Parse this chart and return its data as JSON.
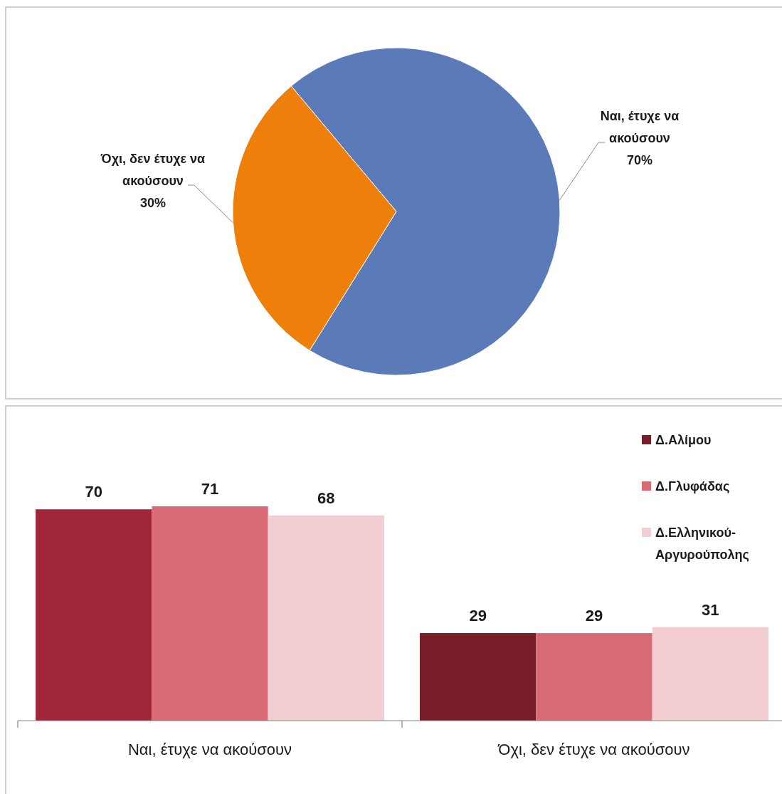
{
  "chart_data": [
    {
      "type": "pie",
      "categories": [
        "Ναι, έτυχε να ακούσουν",
        "Όχι, δεν έτυχε να ακούσουν"
      ],
      "values": [
        70,
        30
      ],
      "colors": [
        "#5b7bb8",
        "#ef7f0b"
      ],
      "value_labels": [
        "70%",
        "30%"
      ]
    },
    {
      "type": "bar",
      "categories": [
        "Ναι, έτυχε να ακούσουν",
        "Όχι, δεν έτυχε να ακούσουν"
      ],
      "series": [
        {
          "name": "Δ.Αλίμου",
          "color": "#771e29",
          "colors": [
            "#a02739",
            "#771e29"
          ],
          "values": [
            70,
            29
          ]
        },
        {
          "name": "Δ.Γλυφάδας",
          "color": "#d96b76",
          "values": [
            71,
            29
          ]
        },
        {
          "name": "Δ.Ελληνικού-Αργυρούπολης",
          "color": "#f2cdd2",
          "values": [
            68,
            31
          ]
        }
      ],
      "data_labels": true,
      "legend": "top right"
    }
  ]
}
